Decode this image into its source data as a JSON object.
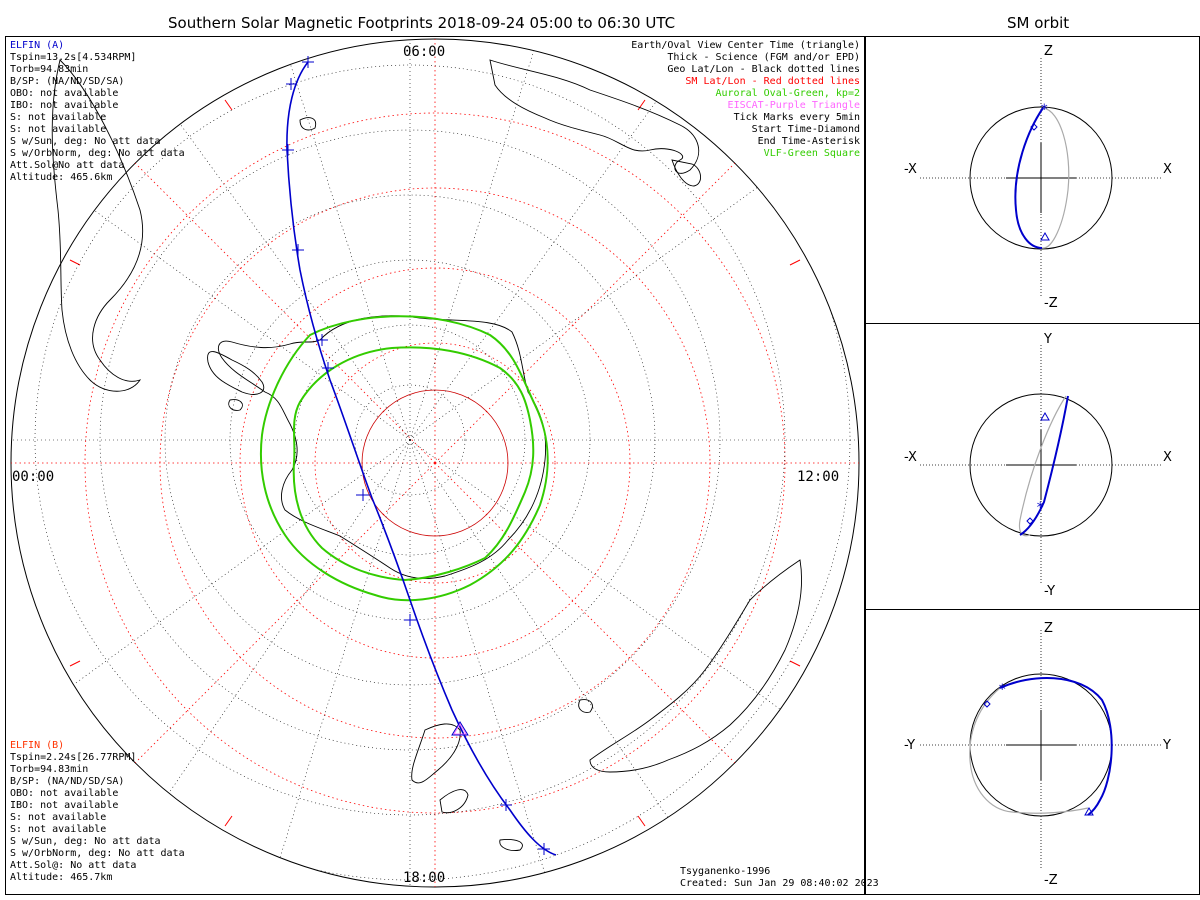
{
  "title": "Southern Solar Magnetic Footprints 2018-09-24 05:00 to 06:30 UTC",
  "orbit_title": "SM orbit",
  "clock_labels": {
    "top": "06:00",
    "left": "00:00",
    "right": "12:00",
    "bottom": "18:00"
  },
  "elfin_a": {
    "name": "ELFIN (A)",
    "color": "#0000cc",
    "lines": [
      "Tspin=13.2s[4.534RPM]",
      "Torb=94.83min",
      "B/SP: (NA/ND/SD/SA)",
      "OBO: not available",
      "IBO: not available",
      "S: not available",
      "S: not available",
      "S w/Sun, deg: No att data",
      "S w/OrbNorm, deg: No att data",
      "Att.Sol@No att data",
      "Altitude: 465.6km"
    ]
  },
  "elfin_b": {
    "name": "ELFIN (B)",
    "color": "#ff3300",
    "lines": [
      "Tspin=2.24s[26.77RPM]",
      "Torb=94.83min",
      "B/SP: (NA/ND/SD/SA)",
      "OBO: not available",
      "IBO: not available",
      "S: not available",
      "S: not available",
      "S w/Sun, deg: No att data",
      "S w/OrbNorm, deg: No att data",
      "Att.Sol@: No att data",
      "Altitude: 465.7km"
    ]
  },
  "legend": [
    {
      "text": "Earth/Oval View Center Time (triangle)",
      "color": "#000000"
    },
    {
      "text": "Thick - Science (FGM and/or EPD)",
      "color": "#000000"
    },
    {
      "text": "Geo Lat/Lon - Black dotted lines",
      "color": "#000000"
    },
    {
      "text": "SM Lat/Lon - Red dotted lines",
      "color": "#ff0000"
    },
    {
      "text": "Auroral Oval-Green, kp=2",
      "color": "#33cc00"
    },
    {
      "text": "EISCAT-Purple Triangle",
      "color": "#ff66ff"
    },
    {
      "text": "Tick Marks every 5min",
      "color": "#000000"
    },
    {
      "text": "Start Time-Diamond",
      "color": "#000000"
    },
    {
      "text": "End Time-Asterisk",
      "color": "#000000"
    },
    {
      "text": "VLF-Green Square",
      "color": "#33cc00"
    }
  ],
  "footer": {
    "model": "Tsyganenko-1996",
    "created": "Created: Sun Jan 29 08:40:02 2023"
  },
  "panels": [
    {
      "top": "Z",
      "bottom": "-Z",
      "left": "-X",
      "right": "X"
    },
    {
      "top": "Y",
      "bottom": "-Y",
      "left": "-X",
      "right": "X"
    },
    {
      "top": "Z",
      "bottom": "-Z",
      "left": "-Y",
      "right": "Y"
    }
  ],
  "colors": {
    "track": "#0000cc",
    "sm_grid": "#ff0000",
    "oval": "#33cc00",
    "orbit_gray": "#aaaaaa"
  }
}
